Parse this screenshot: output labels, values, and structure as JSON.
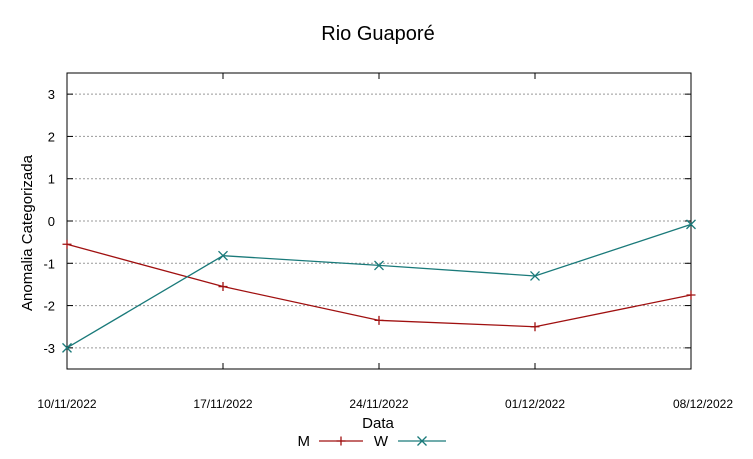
{
  "chart_data": {
    "type": "line",
    "title": "Rio Guaporé",
    "xlabel": "Data",
    "ylabel": "Anomalia Categorizada",
    "categories": [
      "10/11/2022",
      "17/11/2022",
      "24/11/2022",
      "01/12/2022",
      "08/12/2022"
    ],
    "ylim": [
      -3.5,
      3.5
    ],
    "yticks": [
      3,
      2,
      1,
      0,
      -1,
      -2,
      -3
    ],
    "grid": true,
    "legend_position": "bottom",
    "series": [
      {
        "name": "M",
        "color": "#a01010",
        "marker": "plus",
        "values": [
          -0.55,
          -1.55,
          -2.35,
          -2.5,
          -1.75
        ]
      },
      {
        "name": "W",
        "color": "#1a7a7a",
        "marker": "cross",
        "values": [
          -3.0,
          -0.82,
          -1.05,
          -1.3,
          -0.08
        ]
      }
    ]
  }
}
